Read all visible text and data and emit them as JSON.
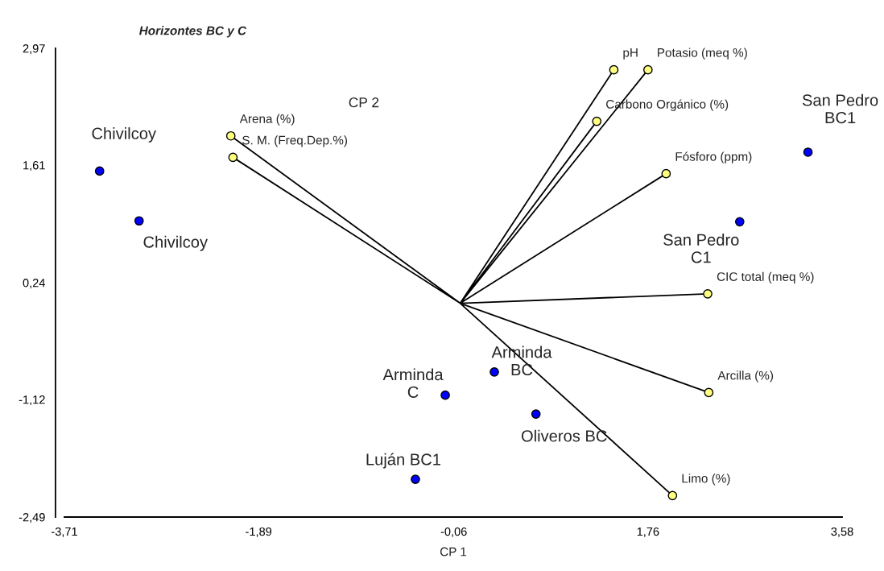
{
  "chart_data": {
    "type": "scatter",
    "title": "Horizontes BC y C",
    "xlabel": "CP 1",
    "ylabel": "CP 2",
    "xlim": [
      -3.71,
      3.58
    ],
    "ylim": [
      -2.49,
      2.97
    ],
    "xticks": [
      {
        "value": -3.71,
        "label": "-3,71"
      },
      {
        "value": -1.89,
        "label": "-1,89"
      },
      {
        "value": -0.06,
        "label": "-0,06"
      },
      {
        "value": 1.76,
        "label": "1,76"
      },
      {
        "value": 3.58,
        "label": "3,58"
      }
    ],
    "yticks": [
      {
        "value": -2.49,
        "label": "-2,49"
      },
      {
        "value": -1.12,
        "label": "-1,12"
      },
      {
        "value": 0.24,
        "label": "0,24"
      },
      {
        "value": 1.61,
        "label": "1,61"
      },
      {
        "value": 2.97,
        "label": "2,97"
      }
    ],
    "grid": false,
    "legend": false,
    "series": [
      {
        "type": "line",
        "color": "#000000",
        "x": [
          0,
          1.44,
          0,
          1.76,
          0,
          1.28,
          0,
          1.93,
          0,
          2.32,
          0,
          2.33,
          0,
          1.99,
          0,
          -2.15,
          0,
          -2.13
        ],
        "values": [
          0,
          2.72,
          0,
          2.72,
          0,
          2.12,
          0,
          1.51,
          0,
          0.11,
          0,
          -1.04,
          0,
          -2.24,
          0,
          1.95,
          0,
          1.7
        ]
      },
      {
        "color": "#0000ff",
        "x": [
          -3.38,
          -3.01,
          3.26,
          2.62,
          0.32,
          -0.14,
          0.71,
          -0.42
        ],
        "values": [
          1.54,
          0.96,
          1.76,
          0.95,
          -0.8,
          -1.07,
          -1.29,
          -2.05
        ]
      },
      {
        "color": "#ffff80",
        "x": [
          1.44,
          1.76,
          1.28,
          1.93,
          2.32,
          2.33,
          1.99,
          -2.15,
          -2.13
        ],
        "values": [
          2.72,
          2.72,
          2.12,
          1.51,
          0.11,
          -1.04,
          -2.24,
          1.95,
          1.7
        ]
      }
    ],
    "annotations": [
      {
        "text": "Chivilcoy",
        "x": -3.38,
        "y": 1.54
      },
      {
        "text": "Chivilcoy",
        "x": -3.01,
        "y": 0.96
      },
      {
        "text": "San Pedro\nBC1",
        "x": 3.26,
        "y": 1.76
      },
      {
        "text": "San Pedro\nC1",
        "x": 2.62,
        "y": 0.95
      },
      {
        "text": "Arminda\nBC",
        "x": 0.32,
        "y": -0.8
      },
      {
        "text": "Arminda\nC",
        "x": -0.14,
        "y": -1.07
      },
      {
        "text": "Oliveros BC",
        "x": 0.71,
        "y": -1.29
      },
      {
        "text": "Luján BC1",
        "x": -0.42,
        "y": -2.05
      },
      {
        "text": "pH",
        "x": 1.44,
        "y": 2.72
      },
      {
        "text": "Potasio (meq %)",
        "x": 1.76,
        "y": 2.72
      },
      {
        "text": "Carbono Orgánico (%)",
        "x": 1.28,
        "y": 2.12
      },
      {
        "text": "Fósforo (ppm)",
        "x": 1.93,
        "y": 1.51
      },
      {
        "text": "CIC total (meq %)",
        "x": 2.32,
        "y": 0.11
      },
      {
        "text": "Arcilla (%)",
        "x": 2.33,
        "y": -1.04
      },
      {
        "text": "Limo (%)",
        "x": 1.99,
        "y": -2.24
      },
      {
        "text": "Arena (%)",
        "x": -2.15,
        "y": 1.95
      },
      {
        "text": "S. M. (Freq.Dep.%)",
        "x": -2.13,
        "y": 1.7
      }
    ]
  }
}
